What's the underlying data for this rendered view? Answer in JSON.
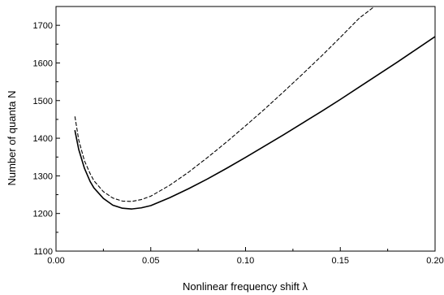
{
  "chart_data": {
    "type": "line",
    "title": "",
    "xlabel": "Nonlinear frequency shift λ",
    "ylabel": "Number of quanta N",
    "xlim": [
      0.0,
      0.2
    ],
    "ylim": [
      1100,
      1750
    ],
    "grid": false,
    "legend": "none",
    "x_ticks": [
      0.0,
      0.05,
      0.1,
      0.15,
      0.2
    ],
    "x_tick_labels": [
      "0.00",
      "0.05",
      "0.10",
      "0.15",
      "0.20"
    ],
    "y_ticks": [
      1100,
      1200,
      1300,
      1400,
      1500,
      1600,
      1700
    ],
    "y_tick_labels": [
      "1100",
      "1200",
      "1300",
      "1400",
      "1500",
      "1600",
      "1700"
    ],
    "series": [
      {
        "style": "solid",
        "color": "#000000",
        "x": [
          0.01,
          0.012,
          0.015,
          0.018,
          0.02,
          0.025,
          0.03,
          0.035,
          0.04,
          0.045,
          0.05,
          0.06,
          0.07,
          0.08,
          0.09,
          0.1,
          0.11,
          0.12,
          0.13,
          0.14,
          0.15,
          0.16,
          0.17,
          0.18,
          0.19,
          0.2
        ],
        "y": [
          1420,
          1370,
          1320,
          1285,
          1268,
          1240,
          1222,
          1214,
          1212,
          1215,
          1221,
          1242,
          1266,
          1292,
          1320,
          1349,
          1379,
          1409,
          1440,
          1471,
          1503,
          1536,
          1569,
          1602,
          1636,
          1670
        ]
      },
      {
        "style": "dashed",
        "color": "#000000",
        "x": [
          0.01,
          0.012,
          0.015,
          0.018,
          0.02,
          0.025,
          0.03,
          0.035,
          0.04,
          0.045,
          0.05,
          0.06,
          0.07,
          0.08,
          0.09,
          0.1,
          0.11,
          0.12,
          0.13,
          0.14,
          0.15,
          0.16,
          0.168
        ],
        "y": [
          1457,
          1395,
          1340,
          1306,
          1287,
          1258,
          1241,
          1233,
          1232,
          1237,
          1246,
          1275,
          1310,
          1349,
          1390,
          1433,
          1477,
          1523,
          1570,
          1618,
          1668,
          1719,
          1750
        ]
      }
    ]
  }
}
